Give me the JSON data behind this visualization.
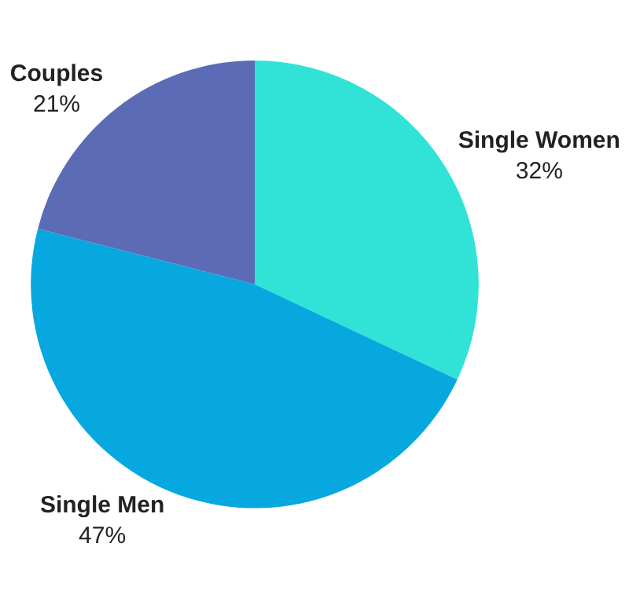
{
  "chart_data": {
    "type": "pie",
    "categories": [
      "Single Women",
      "Single Men",
      "Couples"
    ],
    "values": [
      32,
      47,
      21
    ],
    "colors": [
      "#30e3d6",
      "#07a8e0",
      "#5b6bb5"
    ],
    "value_labels": [
      "32%",
      "47%",
      "21%"
    ],
    "legend": false
  }
}
